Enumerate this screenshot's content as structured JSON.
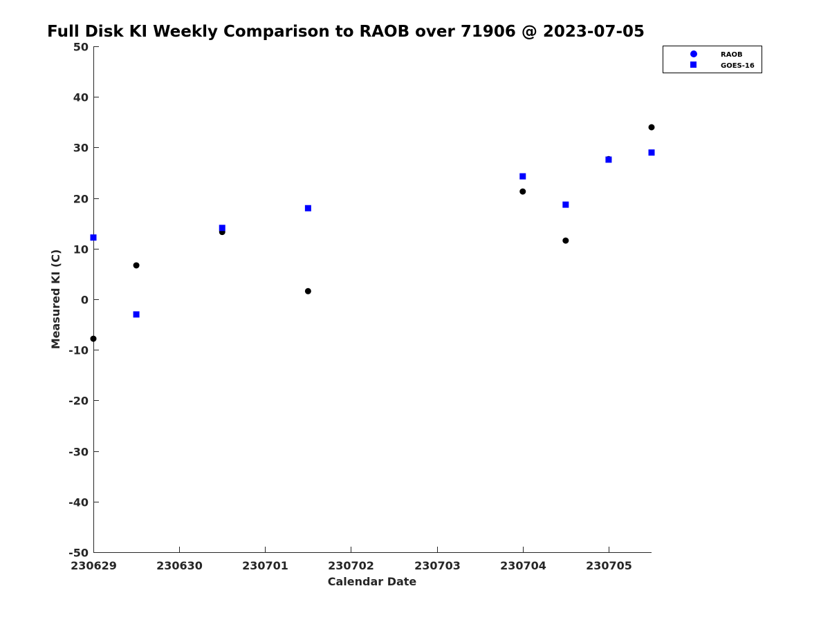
{
  "chart_data": {
    "type": "scatter",
    "title": "Full Disk KI Weekly Comparison to RAOB over 71906 @ 2023-07-05",
    "xlabel": "Calendar Date",
    "ylabel": "Measured KI (C)",
    "x_units": "days since 230629",
    "xlim": [
      0,
      6.5
    ],
    "ylim": [
      -50,
      50
    ],
    "x_ticks": [
      0,
      1,
      2,
      3,
      4,
      5,
      6
    ],
    "x_tick_labels": [
      "230629",
      "230630",
      "230701",
      "230702",
      "230703",
      "230704",
      "230705"
    ],
    "y_ticks": [
      -50,
      -40,
      -30,
      -20,
      -10,
      0,
      10,
      20,
      30,
      40,
      50
    ],
    "grid": false,
    "legend_position": "top-right",
    "series": [
      {
        "name": "RAOB",
        "marker": "circle",
        "color": "#000000",
        "legend_color": "#0000ff",
        "x": [
          0,
          0.5,
          1.5,
          2.5,
          5,
          5.5,
          6,
          6.5
        ],
        "y": [
          -7.8,
          6.7,
          13.3,
          1.6,
          21.3,
          11.6,
          27.7,
          34.0
        ]
      },
      {
        "name": "GOES-16",
        "marker": "square",
        "color": "#0000ff",
        "legend_color": "#0000ff",
        "x": [
          0,
          0.5,
          1.5,
          2.5,
          5,
          5.5,
          6,
          6.5
        ],
        "y": [
          12.2,
          -3.0,
          14.1,
          18.0,
          24.3,
          18.7,
          27.6,
          29.0
        ]
      }
    ]
  }
}
